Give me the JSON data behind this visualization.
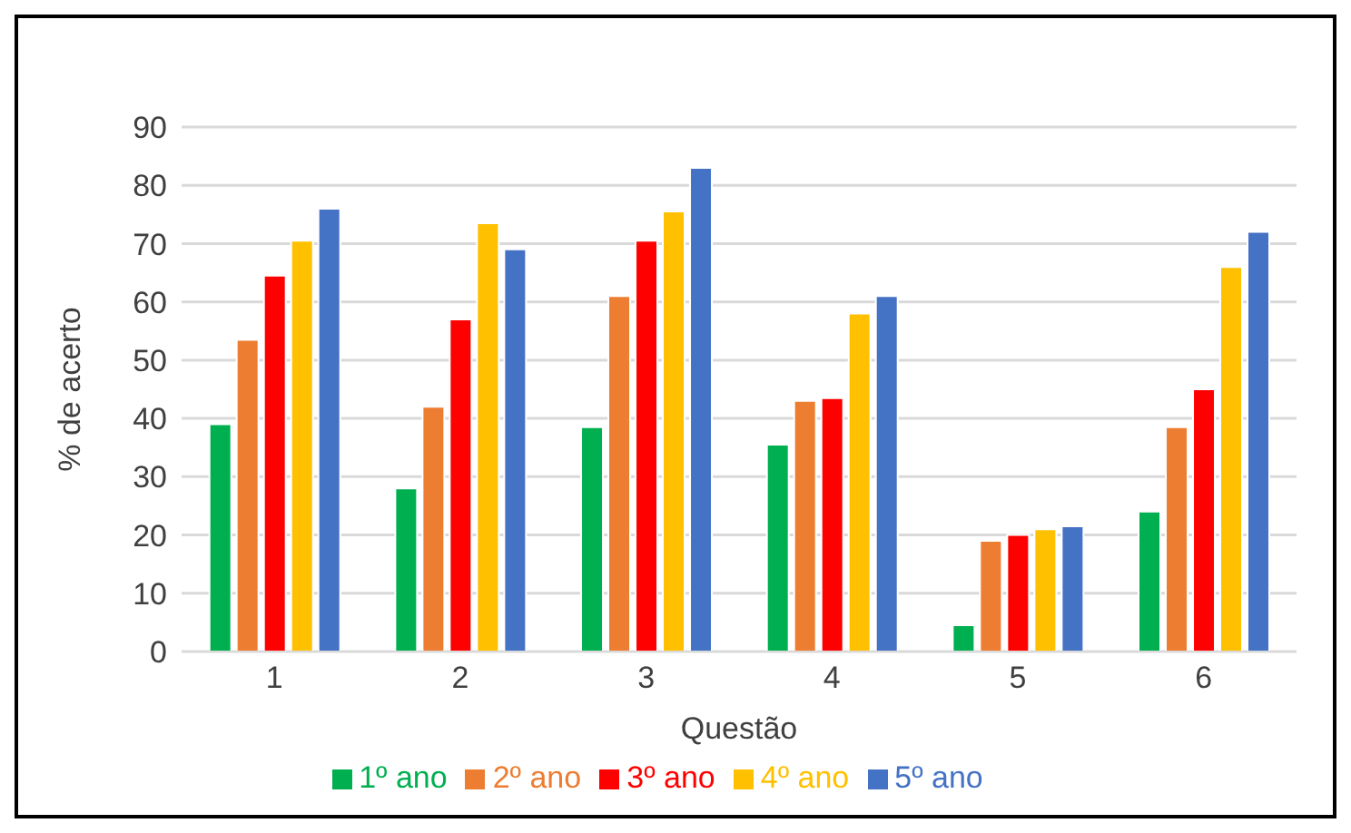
{
  "chart_data": {
    "type": "bar",
    "xlabel": "Questão",
    "ylabel": "% de acerto",
    "categories": [
      "1",
      "2",
      "3",
      "4",
      "5",
      "6"
    ],
    "series": [
      {
        "name": "1º ano",
        "color": "#00b050",
        "values": [
          39,
          28,
          38.5,
          35.5,
          4.5,
          24
        ]
      },
      {
        "name": "2º ano",
        "color": "#ed7d31",
        "values": [
          53.5,
          42,
          61,
          43,
          19,
          38.5
        ]
      },
      {
        "name": "3º ano",
        "color": "#ff0000",
        "values": [
          64.5,
          57,
          70.5,
          43.5,
          20,
          45
        ]
      },
      {
        "name": "4º ano",
        "color": "#ffc000",
        "values": [
          70.5,
          73.5,
          75.5,
          58,
          21,
          66
        ]
      },
      {
        "name": "5º ano",
        "color": "#4472c4",
        "values": [
          76,
          69,
          83,
          61,
          21.5,
          72
        ]
      }
    ],
    "ylim": [
      0,
      90
    ],
    "yticks": [
      0,
      10,
      20,
      30,
      40,
      50,
      60,
      70,
      80,
      90
    ],
    "grid": "y",
    "legend": "bottom"
  }
}
